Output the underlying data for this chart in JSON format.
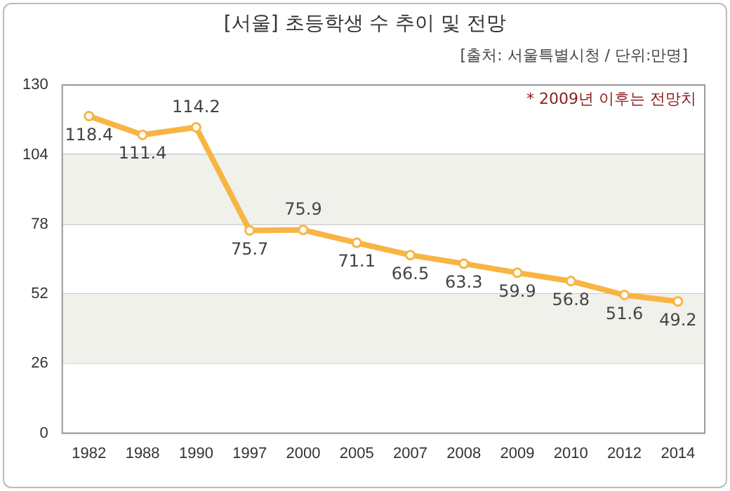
{
  "chart_data": {
    "type": "line",
    "title": "[서울] 초등학생 수 추이 및 전망",
    "subtitle": "[출처: 서울특별시청 / 단위:만명]",
    "annotations": [
      "* 2009년 이후는 전망치"
    ],
    "categories": [
      "1982",
      "1988",
      "1990",
      "1997",
      "2000",
      "2005",
      "2007",
      "2008",
      "2009",
      "2010",
      "2012",
      "2014"
    ],
    "series": [
      {
        "color": "#f7b543",
        "values": [
          118.4,
          111.4,
          114.2,
          75.7,
          75.9,
          71.1,
          66.5,
          63.3,
          59.9,
          56.8,
          51.6,
          49.2
        ]
      }
    ],
    "ylim": [
      0,
      130
    ],
    "yticks": [
      0,
      26,
      52,
      78,
      104,
      130
    ],
    "grid": "y",
    "marker": "circle",
    "data_labels": true,
    "legend": false
  }
}
